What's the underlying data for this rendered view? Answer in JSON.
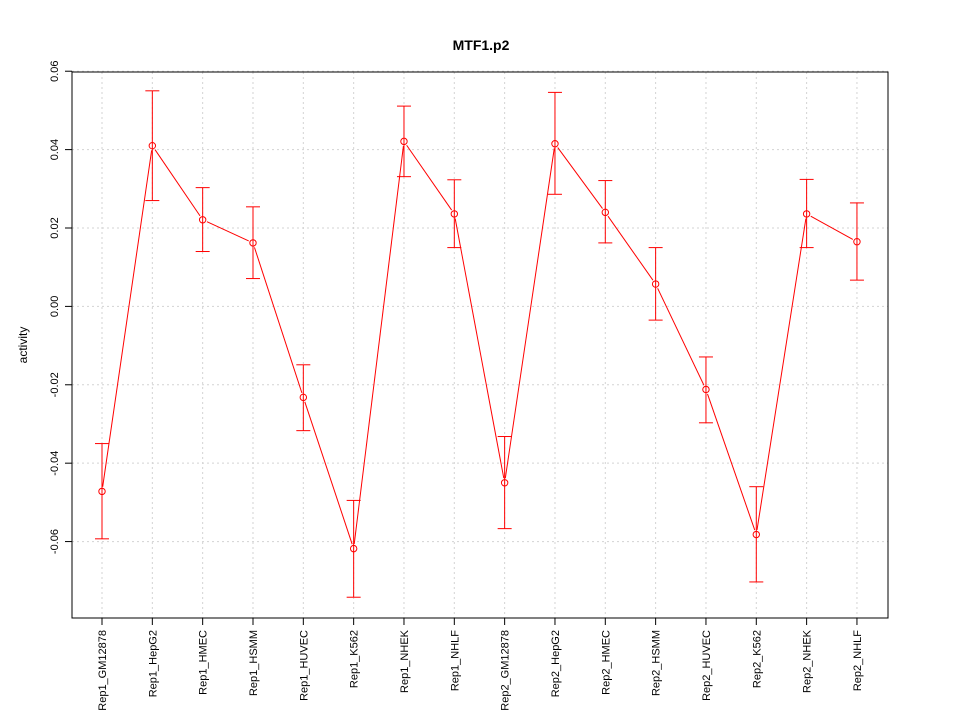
{
  "chart_data": {
    "type": "line",
    "title": "MTF1.p2",
    "xlabel": "",
    "ylabel": "activity",
    "categories": [
      "Rep1_GM12878",
      "Rep1_HepG2",
      "Rep1_HMEC",
      "Rep1_HSMM",
      "Rep1_HUVEC",
      "Rep1_K562",
      "Rep1_NHEK",
      "Rep1_NHLF",
      "Rep2_GM12878",
      "Rep2_HepG2",
      "Rep2_HMEC",
      "Rep2_HSMM",
      "Rep2_HUVEC",
      "Rep2_K562",
      "Rep2_NHEK",
      "Rep2_NHLF"
    ],
    "series": [
      {
        "values": [
          -0.0472,
          0.041,
          0.0221,
          0.0162,
          -0.0232,
          -0.0618,
          0.0421,
          0.0236,
          -0.045,
          0.0415,
          0.024,
          0.0057,
          -0.0212,
          -0.0582,
          0.0236,
          0.0165
        ],
        "err_high": [
          -0.035,
          0.055,
          0.0303,
          0.0254,
          -0.0149,
          -0.0495,
          0.0511,
          0.0323,
          -0.0332,
          0.0546,
          0.0321,
          0.015,
          -0.0129,
          -0.046,
          0.0324,
          0.0264
        ],
        "err_low": [
          -0.0593,
          0.027,
          0.014,
          0.0071,
          -0.0317,
          -0.0742,
          0.0331,
          0.015,
          -0.0567,
          0.0286,
          0.0162,
          -0.0035,
          -0.0297,
          -0.0703,
          0.015,
          0.0067
        ],
        "color": "#ff0000"
      }
    ],
    "yticks": [
      "-0.06",
      "-0.04",
      "-0.02",
      "0.00",
      "0.02",
      "0.04",
      "0.06"
    ],
    "ylim": [
      -0.0795,
      0.0598
    ],
    "grid": true,
    "colors": {
      "series": "#ff0000",
      "grid": "#d3d3d3",
      "axis": "#000000"
    }
  }
}
